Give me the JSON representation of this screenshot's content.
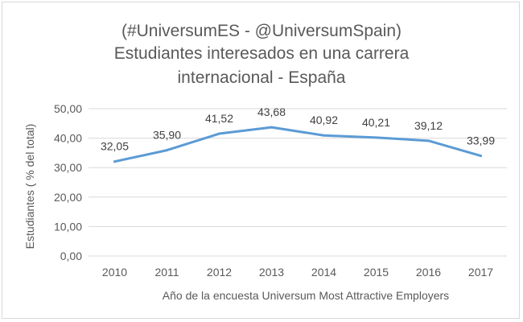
{
  "chart_data": {
    "type": "line",
    "title_lines": [
      "(#UniversumES - @UniversumSpain)",
      "Estudiantes interesados en una carrera",
      "internacional - España"
    ],
    "xlabel": "Año de la encuesta Universum Most Attractive Employers",
    "ylabel": "Estudiantes ( % del total)",
    "categories": [
      "2010",
      "2011",
      "2012",
      "2013",
      "2014",
      "2015",
      "2016",
      "2017"
    ],
    "values": [
      32.05,
      35.9,
      41.52,
      43.68,
      40.92,
      40.21,
      39.12,
      33.99
    ],
    "data_labels": [
      "32,05",
      "35,90",
      "41,52",
      "43,68",
      "40,92",
      "40,21",
      "39,12",
      "33,99"
    ],
    "y_ticks": [
      "0,00",
      "10,00",
      "20,00",
      "30,00",
      "40,00",
      "50,00"
    ],
    "y_tick_values": [
      0,
      10,
      20,
      30,
      40,
      50
    ],
    "ylim": [
      0,
      50
    ],
    "grid": true,
    "legend": "none",
    "line_color": "#5b9bd5",
    "grid_color": "#d9d9d9"
  }
}
